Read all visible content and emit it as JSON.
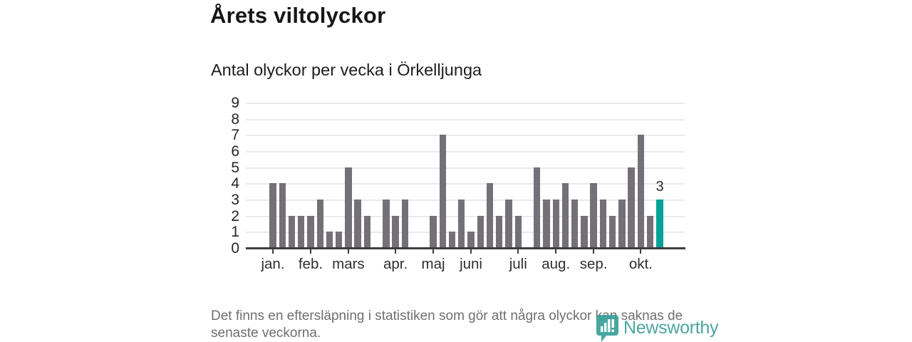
{
  "header": {
    "title": "Årets viltolyckor",
    "subtitle": "Antal olyckor per vecka i Örkelljunga"
  },
  "chart_data": {
    "type": "bar",
    "title": "Årets viltolyckor",
    "subtitle": "Antal olyckor per vecka i Örkelljunga",
    "x_unit": "vecka",
    "values": [
      4,
      4,
      2,
      2,
      2,
      3,
      1,
      1,
      5,
      3,
      2,
      0,
      3,
      2,
      3,
      0,
      0,
      2,
      7,
      1,
      3,
      1,
      2,
      4,
      2,
      3,
      2,
      0,
      5,
      3,
      3,
      4,
      3,
      2,
      4,
      3,
      2,
      3,
      5,
      7,
      2,
      3
    ],
    "weeks": 42,
    "month_ticks": [
      {
        "label": "jan.",
        "week": 1
      },
      {
        "label": "feb.",
        "week": 5
      },
      {
        "label": "mars",
        "week": 9
      },
      {
        "label": "apr.",
        "week": 14
      },
      {
        "label": "maj",
        "week": 18
      },
      {
        "label": "juni",
        "week": 22
      },
      {
        "label": "juli",
        "week": 27
      },
      {
        "label": "aug.",
        "week": 31
      },
      {
        "label": "sep.",
        "week": 35
      },
      {
        "label": "okt.",
        "week": 40
      }
    ],
    "yticks": [
      0,
      1,
      2,
      3,
      4,
      5,
      6,
      7,
      8,
      9
    ],
    "ylim": [
      0,
      9
    ],
    "grid": true,
    "legend": "none",
    "bar_color": "#737077",
    "highlight": {
      "index": 41,
      "color": "#00a296",
      "label": "3"
    },
    "annotation": "3"
  },
  "footer": {
    "note": "Det finns en eftersläpning i statistiken som gör att några olyckor kan saknas de senaste veckorna."
  },
  "logo": {
    "text": "Newsworthy",
    "color": "#3e9e99"
  }
}
